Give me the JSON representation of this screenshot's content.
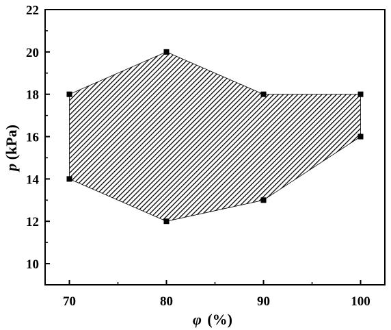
{
  "chart_data": {
    "type": "area",
    "title": "",
    "xlabel": {
      "symbol": "φ",
      "unit": "(%)"
    },
    "ylabel": {
      "symbol": "p",
      "unit": "(kPa)"
    },
    "xlim": [
      67.5,
      102.5
    ],
    "ylim": [
      9,
      22
    ],
    "xticks": [
      70,
      80,
      90,
      100
    ],
    "yticks": [
      10,
      12,
      14,
      16,
      18,
      20,
      22
    ],
    "grid": false,
    "legend": "none",
    "fill_pattern": "diagonal-hatch",
    "series": [
      {
        "x": [
          70,
          80,
          90,
          100
        ],
        "upper": [
          18,
          20,
          18,
          18
        ],
        "lower": [
          14,
          12,
          13,
          16
        ]
      }
    ],
    "colors": {
      "fill": "#000000",
      "stroke": "#000000",
      "background": "#ffffff"
    }
  }
}
